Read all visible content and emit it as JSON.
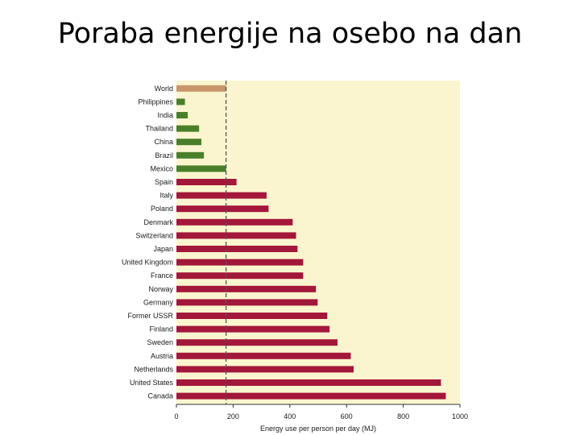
{
  "slide": {
    "title": "Poraba energije na osebo na dan"
  },
  "colors": {
    "plot_bg": "#fbf5cf",
    "world": "#c9956a",
    "developing": "#4a7f2a",
    "developed": "#a3173a",
    "reference_line": "#555555"
  },
  "chart_data": {
    "type": "bar",
    "orientation": "horizontal",
    "title": "",
    "xlabel": "Energy use per person per day (MJ)",
    "ylabel": "",
    "xlim": [
      0,
      1000
    ],
    "xticks": [
      0,
      200,
      400,
      600,
      800,
      1000
    ],
    "reference_line": {
      "value": 175,
      "style": "dashed"
    },
    "categories": [
      "World",
      "Philippines",
      "India",
      "Thailand",
      "China",
      "Brazil",
      "Mexico",
      "Spain",
      "Italy",
      "Poland",
      "Denmark",
      "Switzerland",
      "Japan",
      "United Kingdom",
      "France",
      "Norway",
      "Germany",
      "Former USSR",
      "Finland",
      "Sweden",
      "Austria",
      "Netherlands",
      "United States",
      "Canada"
    ],
    "values": [
      175,
      30,
      40,
      80,
      88,
      97,
      175,
      212,
      318,
      325,
      410,
      422,
      427,
      447,
      447,
      492,
      498,
      532,
      540,
      568,
      615,
      625,
      933,
      950
    ],
    "groups": [
      "world",
      "developing",
      "developing",
      "developing",
      "developing",
      "developing",
      "developing",
      "developed",
      "developed",
      "developed",
      "developed",
      "developed",
      "developed",
      "developed",
      "developed",
      "developed",
      "developed",
      "developed",
      "developed",
      "developed",
      "developed",
      "developed",
      "developed",
      "developed"
    ],
    "grid": false,
    "legend": "none"
  }
}
